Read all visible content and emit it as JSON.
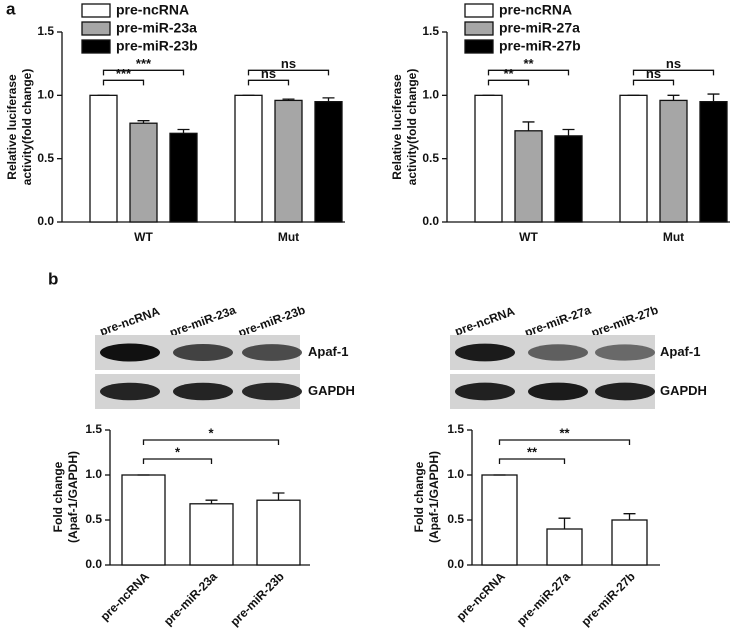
{
  "panels": [
    "a",
    "b"
  ],
  "chart_data": [
    {
      "type": "bar",
      "y_label": [
        "Relative luciferase",
        "activity(fold change)"
      ],
      "categories": [
        "WT",
        "Mut"
      ],
      "series": [
        {
          "name": "pre-ncRNA",
          "color": "#ffffff",
          "values": [
            1.0,
            1.0
          ],
          "errors": [
            0,
            0
          ]
        },
        {
          "name": "pre-miR-23a",
          "color": "#a6a6a6",
          "values": [
            0.78,
            0.96
          ],
          "errors": [
            0.02,
            0.01
          ]
        },
        {
          "name": "pre-miR-23b",
          "color": "#000000",
          "values": [
            0.7,
            0.95
          ],
          "errors": [
            0.03,
            0.03
          ]
        }
      ],
      "ylim": [
        0,
        1.5
      ],
      "yticks": [
        {
          "value": 0,
          "label": "0.0"
        },
        0.5,
        {
          "value": 1,
          "label": "1.0"
        },
        1.5
      ],
      "annotations": [
        "***",
        "***",
        "ns",
        "ns"
      ]
    },
    {
      "type": "bar",
      "y_label": [
        "Relative luciferase",
        "activity(fold change)"
      ],
      "categories": [
        "WT",
        "Mut"
      ],
      "series": [
        {
          "name": "pre-ncRNA",
          "color": "#ffffff",
          "values": [
            1.0,
            1.0
          ],
          "errors": [
            0,
            0
          ]
        },
        {
          "name": "pre-miR-27a",
          "color": "#a6a6a6",
          "values": [
            0.72,
            0.96
          ],
          "errors": [
            0.07,
            0.04
          ]
        },
        {
          "name": "pre-miR-27b",
          "color": "#000000",
          "values": [
            0.68,
            0.95
          ],
          "errors": [
            0.05,
            0.06
          ]
        }
      ],
      "ylim": [
        0,
        1.5
      ],
      "yticks": [
        {
          "value": 0,
          "label": "0.0"
        },
        0.5,
        {
          "value": 1,
          "label": "1.0"
        },
        1.5
      ],
      "annotations": [
        "**",
        "**",
        "ns",
        "ns"
      ]
    },
    {
      "type": "bar",
      "y_label": [
        "Fold change",
        "(Apaf-1/GAPDH)"
      ],
      "categories": [
        "pre-ncRNA",
        "pre-miR-23a",
        "pre-miR-23b"
      ],
      "values": [
        1.0,
        0.68,
        0.72
      ],
      "errors": [
        0,
        0.04,
        0.08
      ],
      "color": "#ffffff",
      "ylim": [
        0,
        1.5
      ],
      "yticks": [
        {
          "value": 0,
          "label": "0.0"
        },
        0.5,
        {
          "value": 1,
          "label": "1.0"
        },
        1.5
      ],
      "annotations": [
        "*",
        "*"
      ]
    },
    {
      "type": "bar",
      "y_label": [
        "Fold change",
        "(Apaf-1/GAPDH)"
      ],
      "categories": [
        "pre-ncRNA",
        "pre-miR-27a",
        "pre-miR-27b"
      ],
      "values": [
        1.0,
        0.4,
        0.5
      ],
      "errors": [
        0,
        0.12,
        0.07
      ],
      "color": "#ffffff",
      "ylim": [
        0,
        1.5
      ],
      "yticks": [
        {
          "value": 0,
          "label": "0.0"
        },
        0.5,
        {
          "value": 1,
          "label": "1.0"
        },
        1.5
      ],
      "annotations": [
        "**",
        "**"
      ]
    }
  ],
  "blots": [
    {
      "lanes": [
        "pre-ncRNA",
        "pre-miR-23a",
        "pre-miR-23b"
      ],
      "rows": [
        "Apaf-1",
        "GAPDH"
      ]
    },
    {
      "lanes": [
        "pre-ncRNA",
        "pre-miR-27a",
        "pre-miR-27b"
      ],
      "rows": [
        "Apaf-1",
        "GAPDH"
      ]
    }
  ]
}
